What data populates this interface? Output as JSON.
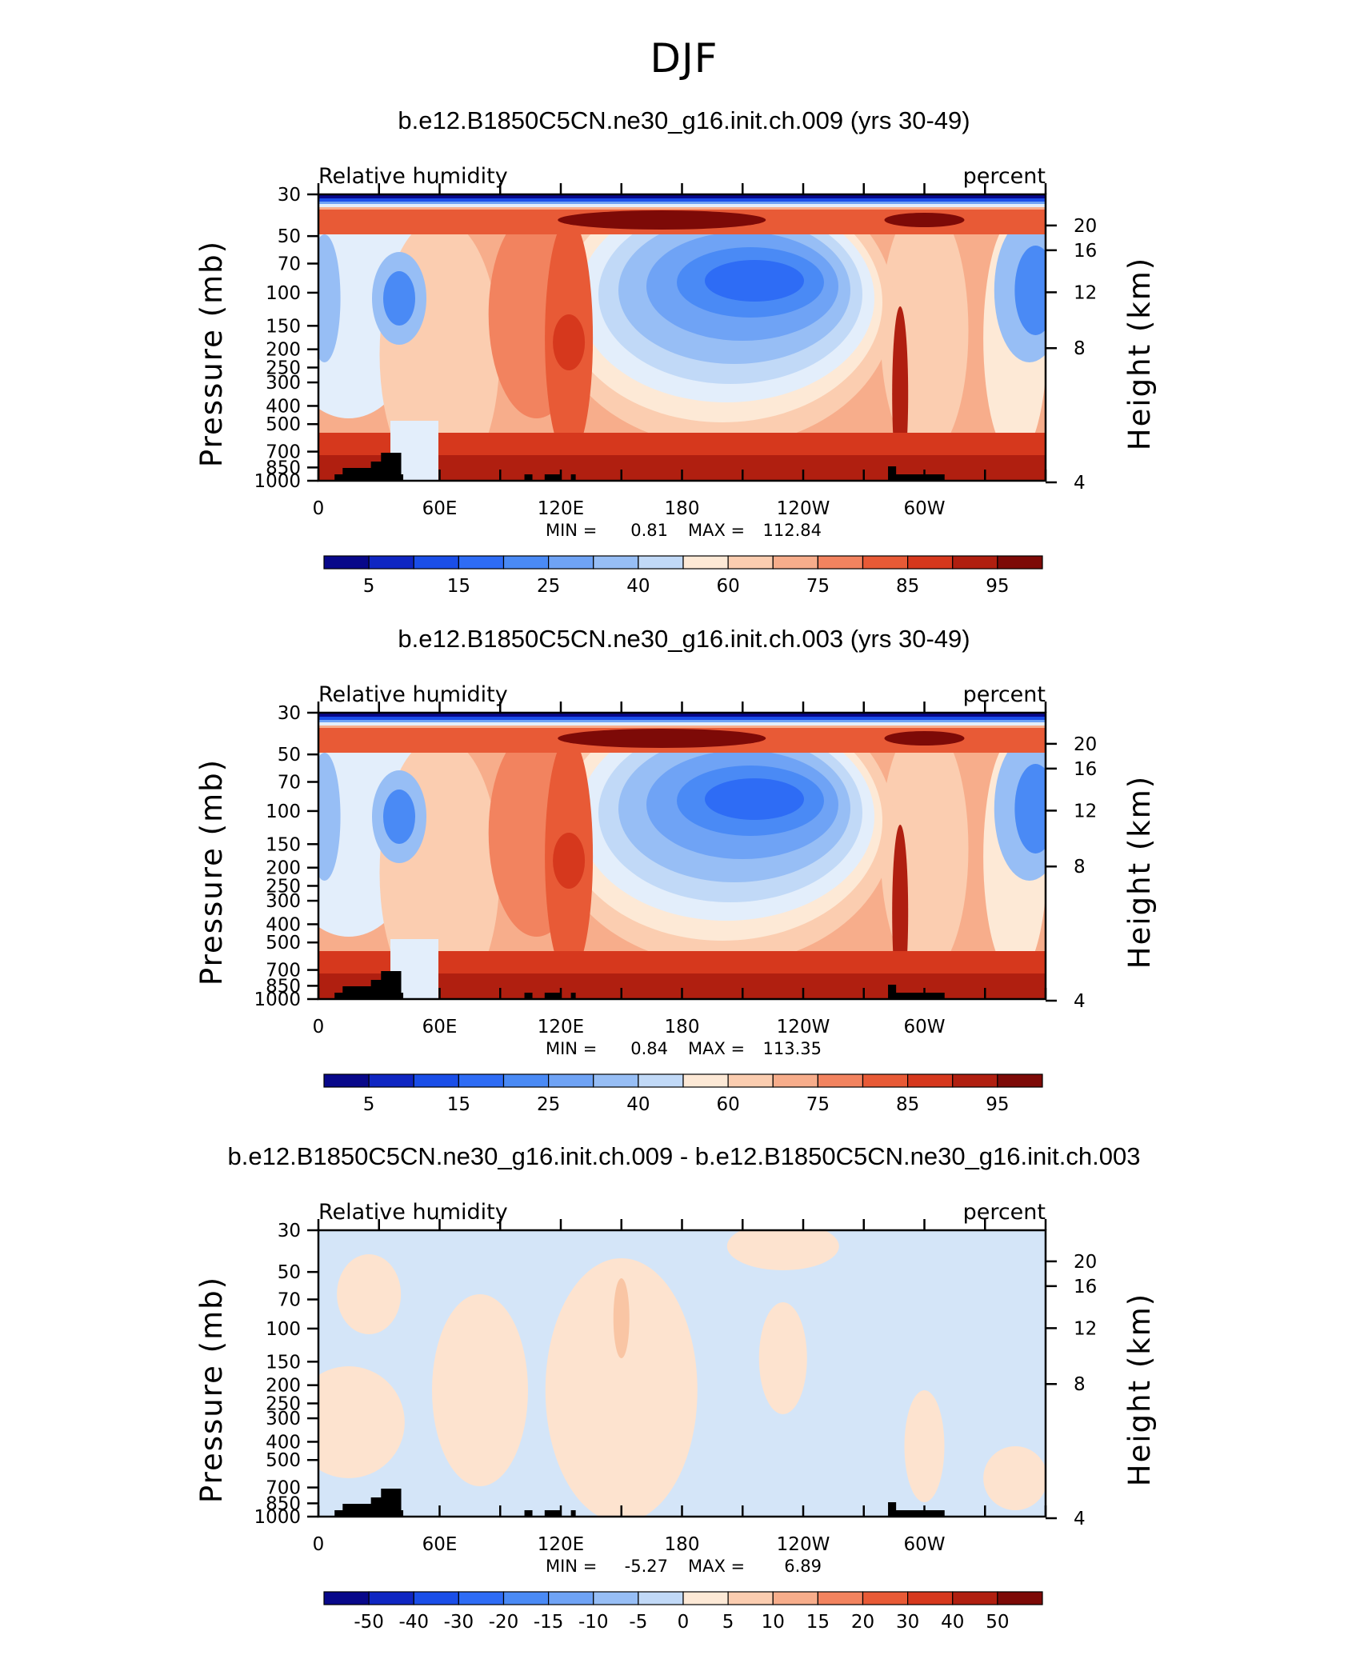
{
  "page_title": "DJF",
  "variable_label": "Relative humidity",
  "units_label": "percent",
  "left_axis_label": "Pressure (mb)",
  "right_axis_label": "Height (km)",
  "panels": [
    {
      "title": "b.e12.B1850C5CN.ne30_g16.init.ch.009 (yrs 30-49)",
      "min_label": "MIN =",
      "min_value": "0.81",
      "max_label": "MAX =",
      "max_value": "112.84",
      "colorbar_labels": [
        "5",
        "15",
        "25",
        "40",
        "60",
        "75",
        "85",
        "95"
      ]
    },
    {
      "title": "b.e12.B1850C5CN.ne30_g16.init.ch.003 (yrs 30-49)",
      "min_label": "MIN =",
      "min_value": "0.84",
      "max_label": "MAX =",
      "max_value": "113.35",
      "colorbar_labels": [
        "5",
        "15",
        "25",
        "40",
        "60",
        "75",
        "85",
        "95"
      ]
    },
    {
      "title": "b.e12.B1850C5CN.ne30_g16.init.ch.009 - b.e12.B1850C5CN.ne30_g16.init.ch.003",
      "min_label": "MIN =",
      "min_value": "-5.27",
      "max_label": "MAX =",
      "max_value": "6.89",
      "colorbar_labels": [
        "-50",
        "-40",
        "-30",
        "-20",
        "-15",
        "-10",
        "-5",
        "0",
        "5",
        "10",
        "15",
        "20",
        "30",
        "40",
        "50"
      ]
    }
  ],
  "chart_data": [
    {
      "type": "heatmap",
      "title": "b.e12.B1850C5CN.ne30_g16.init.ch.009 (yrs 30-49)",
      "subtitle_left": "Relative humidity",
      "subtitle_right": "percent",
      "xlabel": "",
      "ylabel": "Pressure (mb)",
      "ylabel_right": "Height (km)",
      "x_ticks": [
        "0",
        "60E",
        "120E",
        "180",
        "120W",
        "60W"
      ],
      "y_ticks": [
        "30",
        "50",
        "70",
        "100",
        "150",
        "200",
        "250",
        "300",
        "400",
        "500",
        "700",
        "850",
        "1000"
      ],
      "y_ticks_right": [
        "20",
        "16",
        "12",
        "8",
        "4"
      ],
      "ylim": [
        1000,
        30
      ],
      "y_scale": "log",
      "min": 0.81,
      "max": 112.84,
      "contour_levels": [
        5,
        10,
        15,
        20,
        25,
        30,
        40,
        50,
        60,
        65,
        70,
        75,
        80,
        85,
        90,
        95
      ],
      "colorbar_labels": [
        "5",
        "15",
        "25",
        "40",
        "60",
        "75",
        "85",
        "95"
      ]
    },
    {
      "type": "heatmap",
      "title": "b.e12.B1850C5CN.ne30_g16.init.ch.003 (yrs 30-49)",
      "subtitle_left": "Relative humidity",
      "subtitle_right": "percent",
      "xlabel": "",
      "ylabel": "Pressure (mb)",
      "ylabel_right": "Height (km)",
      "x_ticks": [
        "0",
        "60E",
        "120E",
        "180",
        "120W",
        "60W"
      ],
      "y_ticks": [
        "30",
        "50",
        "70",
        "100",
        "150",
        "200",
        "250",
        "300",
        "400",
        "500",
        "700",
        "850",
        "1000"
      ],
      "y_ticks_right": [
        "20",
        "16",
        "12",
        "8",
        "4"
      ],
      "ylim": [
        1000,
        30
      ],
      "y_scale": "log",
      "min": 0.84,
      "max": 113.35,
      "contour_levels": [
        5,
        10,
        15,
        20,
        25,
        30,
        40,
        50,
        60,
        65,
        70,
        75,
        80,
        85,
        90,
        95
      ],
      "colorbar_labels": [
        "5",
        "15",
        "25",
        "40",
        "60",
        "75",
        "85",
        "95"
      ]
    },
    {
      "type": "heatmap",
      "title": "b.e12.B1850C5CN.ne30_g16.init.ch.009 - b.e12.B1850C5CN.ne30_g16.init.ch.003",
      "subtitle_left": "Relative humidity",
      "subtitle_right": "percent",
      "xlabel": "",
      "ylabel": "Pressure (mb)",
      "ylabel_right": "Height (km)",
      "x_ticks": [
        "0",
        "60E",
        "120E",
        "180",
        "120W",
        "60W"
      ],
      "y_ticks": [
        "30",
        "50",
        "70",
        "100",
        "150",
        "200",
        "250",
        "300",
        "400",
        "500",
        "700",
        "850",
        "1000"
      ],
      "y_ticks_right": [
        "20",
        "16",
        "12",
        "8",
        "4"
      ],
      "ylim": [
        1000,
        30
      ],
      "y_scale": "log",
      "min": -5.27,
      "max": 6.89,
      "contour_levels": [
        -50,
        -40,
        -30,
        -20,
        -15,
        -10,
        -5,
        0,
        5,
        10,
        15,
        20,
        30,
        40,
        50
      ],
      "colorbar_labels": [
        "-50",
        "-40",
        "-30",
        "-20",
        "-15",
        "-10",
        "-5",
        "0",
        "5",
        "10",
        "15",
        "20",
        "30",
        "40",
        "50"
      ]
    }
  ],
  "colors": {
    "colorbar": [
      "#08088a",
      "#0f26c2",
      "#1a4ee8",
      "#2e6cf5",
      "#4a8af5",
      "#6fa3f5",
      "#97bef5",
      "#c1d9f7",
      "#e3eefb",
      "#fde9d6",
      "#fbcdb0",
      "#f7ad8b",
      "#f2835f",
      "#e85a36",
      "#d6381d",
      "#b01f10",
      "#7d0a07"
    ],
    "terrain": "#000000"
  }
}
